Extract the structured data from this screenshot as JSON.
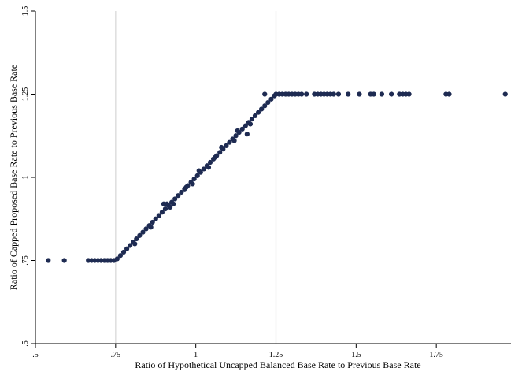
{
  "chart_data": {
    "type": "scatter",
    "title": "",
    "xlabel": "Ratio of Hypothetical Uncapped Balanced Base Rate to Previous Base Rate",
    "ylabel": "Ratio of Capped Proposed Base Rate to Previous Base Rate",
    "xlim": [
      0.5,
      2.0
    ],
    "ylim": [
      0.5,
      1.5
    ],
    "x_ticks": [
      0.5,
      0.75,
      1.0,
      1.25,
      1.5,
      1.75
    ],
    "x_tick_labels": [
      ".5",
      ".75",
      "1",
      "1.25",
      "1.5",
      "1.75"
    ],
    "y_ticks": [
      0.5,
      0.75,
      1.0,
      1.25,
      1.5
    ],
    "y_tick_labels": [
      ".5",
      ".75",
      "1",
      "1.25",
      "1.5"
    ],
    "reference_lines_x": [
      0.75,
      1.25
    ],
    "grid": false,
    "legend": "none",
    "point_color": "#1e2b52",
    "reference_line_color": "#d9d9d9",
    "points": [
      [
        0.54,
        0.75
      ],
      [
        0.59,
        0.75
      ],
      [
        0.665,
        0.75
      ],
      [
        0.675,
        0.75
      ],
      [
        0.685,
        0.75
      ],
      [
        0.695,
        0.75
      ],
      [
        0.705,
        0.75
      ],
      [
        0.715,
        0.75
      ],
      [
        0.725,
        0.75
      ],
      [
        0.735,
        0.75
      ],
      [
        0.745,
        0.75
      ],
      [
        0.755,
        0.755
      ],
      [
        0.765,
        0.765
      ],
      [
        0.775,
        0.775
      ],
      [
        0.785,
        0.785
      ],
      [
        0.795,
        0.795
      ],
      [
        0.805,
        0.805
      ],
      [
        0.815,
        0.815
      ],
      [
        0.825,
        0.825
      ],
      [
        0.835,
        0.835
      ],
      [
        0.845,
        0.845
      ],
      [
        0.855,
        0.855
      ],
      [
        0.865,
        0.865
      ],
      [
        0.875,
        0.875
      ],
      [
        0.885,
        0.885
      ],
      [
        0.895,
        0.895
      ],
      [
        0.905,
        0.905
      ],
      [
        0.915,
        0.915
      ],
      [
        0.925,
        0.925
      ],
      [
        0.935,
        0.935
      ],
      [
        0.945,
        0.945
      ],
      [
        0.955,
        0.955
      ],
      [
        0.965,
        0.965
      ],
      [
        0.975,
        0.975
      ],
      [
        0.985,
        0.985
      ],
      [
        0.995,
        0.995
      ],
      [
        1.005,
        1.005
      ],
      [
        1.015,
        1.015
      ],
      [
        1.025,
        1.025
      ],
      [
        1.035,
        1.035
      ],
      [
        1.045,
        1.045
      ],
      [
        1.055,
        1.055
      ],
      [
        1.065,
        1.065
      ],
      [
        1.075,
        1.075
      ],
      [
        1.085,
        1.085
      ],
      [
        1.095,
        1.095
      ],
      [
        1.105,
        1.105
      ],
      [
        1.115,
        1.115
      ],
      [
        1.125,
        1.125
      ],
      [
        1.135,
        1.135
      ],
      [
        1.145,
        1.145
      ],
      [
        1.155,
        1.155
      ],
      [
        1.165,
        1.165
      ],
      [
        1.175,
        1.175
      ],
      [
        1.185,
        1.185
      ],
      [
        1.195,
        1.195
      ],
      [
        1.205,
        1.205
      ],
      [
        1.215,
        1.215
      ],
      [
        1.225,
        1.225
      ],
      [
        1.235,
        1.235
      ],
      [
        1.245,
        1.245
      ],
      [
        0.81,
        0.8
      ],
      [
        0.86,
        0.85
      ],
      [
        0.9,
        0.92
      ],
      [
        0.91,
        0.92
      ],
      [
        0.92,
        0.91
      ],
      [
        0.93,
        0.92
      ],
      [
        0.97,
        0.97
      ],
      [
        0.99,
        0.98
      ],
      [
        1.01,
        1.02
      ],
      [
        1.04,
        1.03
      ],
      [
        1.06,
        1.06
      ],
      [
        1.08,
        1.09
      ],
      [
        1.12,
        1.11
      ],
      [
        1.13,
        1.14
      ],
      [
        1.16,
        1.13
      ],
      [
        1.17,
        1.16
      ],
      [
        1.215,
        1.25
      ],
      [
        1.25,
        1.25
      ],
      [
        1.26,
        1.25
      ],
      [
        1.27,
        1.25
      ],
      [
        1.28,
        1.25
      ],
      [
        1.29,
        1.25
      ],
      [
        1.3,
        1.25
      ],
      [
        1.31,
        1.25
      ],
      [
        1.32,
        1.25
      ],
      [
        1.33,
        1.25
      ],
      [
        1.345,
        1.25
      ],
      [
        1.37,
        1.25
      ],
      [
        1.38,
        1.25
      ],
      [
        1.39,
        1.25
      ],
      [
        1.4,
        1.25
      ],
      [
        1.41,
        1.25
      ],
      [
        1.42,
        1.25
      ],
      [
        1.43,
        1.25
      ],
      [
        1.445,
        1.25
      ],
      [
        1.475,
        1.25
      ],
      [
        1.51,
        1.25
      ],
      [
        1.545,
        1.25
      ],
      [
        1.555,
        1.25
      ],
      [
        1.58,
        1.25
      ],
      [
        1.61,
        1.25
      ],
      [
        1.635,
        1.25
      ],
      [
        1.645,
        1.25
      ],
      [
        1.655,
        1.25
      ],
      [
        1.665,
        1.25
      ],
      [
        1.78,
        1.25
      ],
      [
        1.79,
        1.25
      ],
      [
        1.965,
        1.25
      ]
    ]
  }
}
